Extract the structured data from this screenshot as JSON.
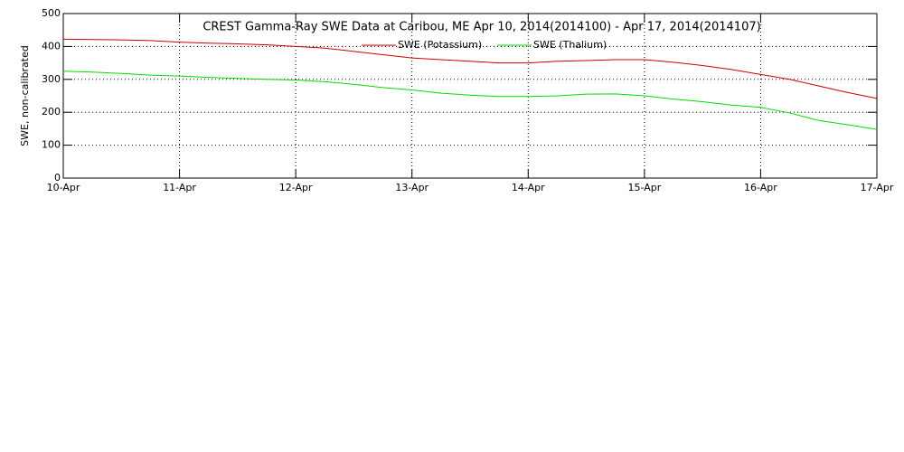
{
  "chart_data": {
    "type": "line",
    "title": "CREST Gamma-Ray SWE Data at Caribou, ME   Apr 10, 2014(2014100) - Apr 17, 2014(2014107)",
    "y_label": "SWE, non-calibrated",
    "x": [
      0,
      0.25,
      0.5,
      0.75,
      1,
      1.25,
      1.5,
      1.75,
      2,
      2.25,
      2.5,
      2.75,
      3,
      3.25,
      3.5,
      3.75,
      4,
      4.25,
      4.5,
      4.75,
      5,
      5.25,
      5.5,
      5.75,
      6,
      6.25,
      6.5,
      6.75,
      7
    ],
    "series": [
      {
        "name": "SWE (Potassium)",
        "color": "#cc0000",
        "values": [
          422,
          421,
          420,
          418,
          413,
          410,
          408,
          405,
          400,
          395,
          385,
          375,
          365,
          360,
          355,
          350,
          350,
          355,
          357,
          360,
          360,
          352,
          342,
          330,
          315,
          300,
          280,
          260,
          242
        ]
      },
      {
        "name": "SWE (Thalium)",
        "color": "#00dd00",
        "values": [
          325,
          322,
          318,
          313,
          310,
          306,
          303,
          300,
          298,
          293,
          285,
          275,
          268,
          258,
          252,
          248,
          248,
          250,
          255,
          256,
          250,
          240,
          232,
          222,
          215,
          198,
          175,
          162,
          148
        ]
      }
    ],
    "xlim": [
      0,
      7
    ],
    "xticks": [
      {
        "value": 0,
        "label": "10-Apr"
      },
      {
        "value": 1,
        "label": "11-Apr"
      },
      {
        "value": 2,
        "label": "12-Apr"
      },
      {
        "value": 3,
        "label": "13-Apr"
      },
      {
        "value": 4,
        "label": "14-Apr"
      },
      {
        "value": 5,
        "label": "15-Apr"
      },
      {
        "value": 6,
        "label": "16-Apr"
      },
      {
        "value": 7,
        "label": "17-Apr"
      }
    ],
    "ylim": [
      0,
      500
    ],
    "yticks": [
      0,
      100,
      200,
      300,
      400,
      500
    ],
    "grid": true
  }
}
